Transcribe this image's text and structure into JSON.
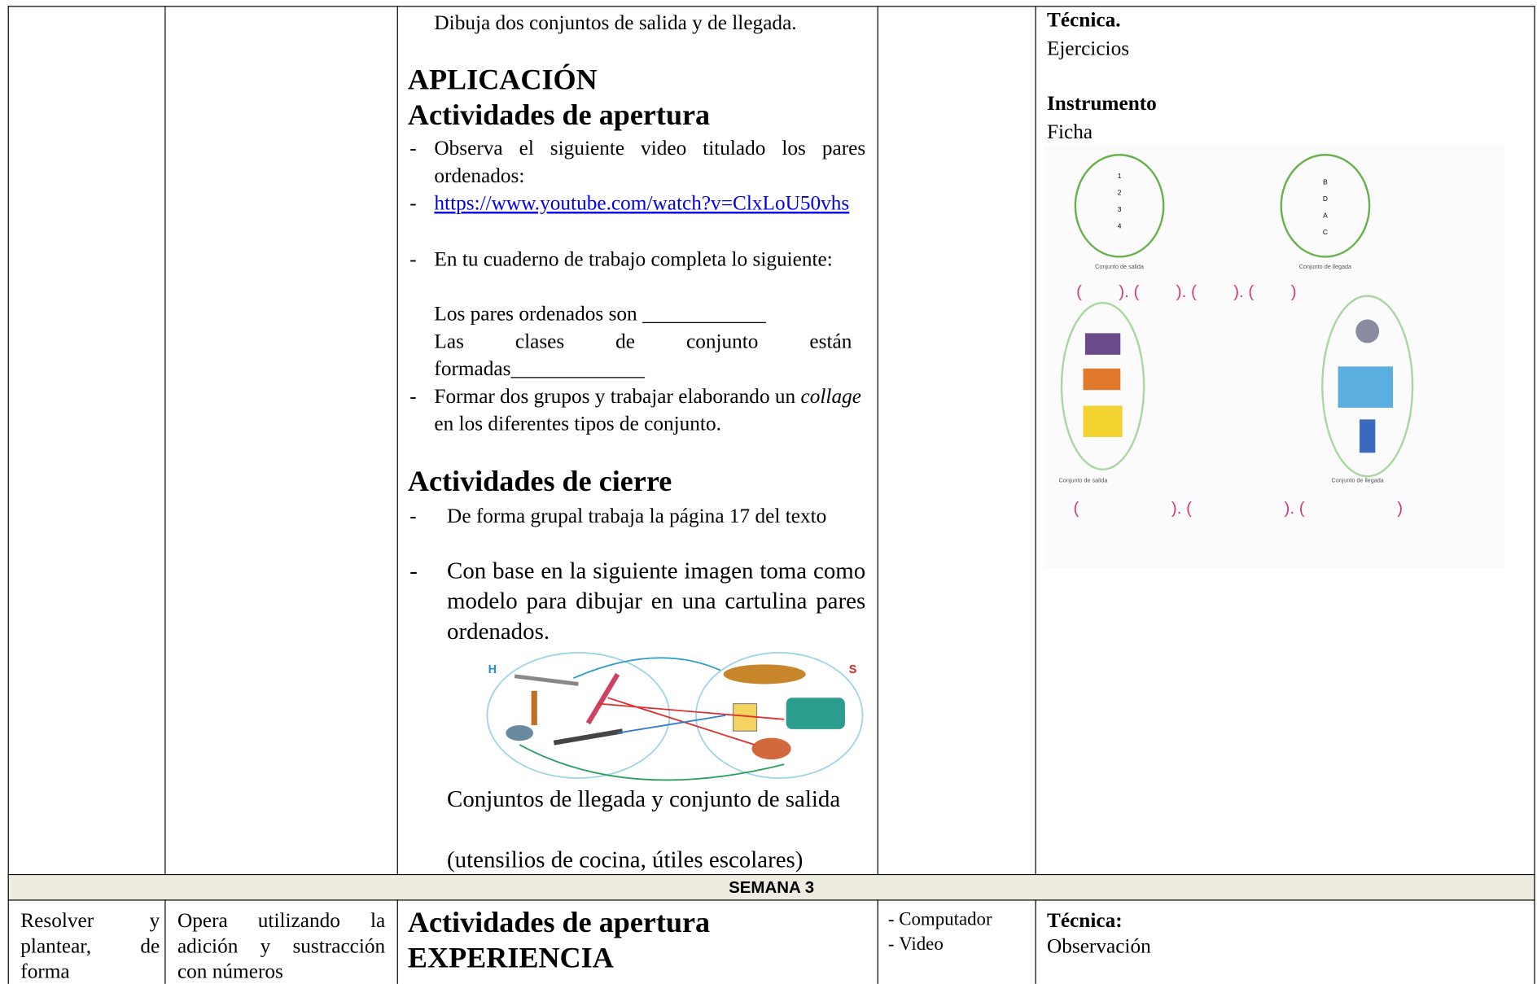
{
  "row1": {
    "col3": {
      "intro": "Dibuja dos conjuntos de salida y de llegada.",
      "heading": "APLICACIÓN",
      "subheading_opening": "Actividades de apertura",
      "bullet1": "Observa el siguiente video titulado los pares ordenados:",
      "link": "https://www.youtube.com/watch?v=ClxLoU50vhs",
      "bullet3": "En tu cuaderno de trabajo completa lo siguiente:",
      "line_pairs": "Los pares ordenados son ____________",
      "line_classes": "Las clases de conjunto están formadas_____________",
      "bullet4_start": "Formar dos grupos y trabajar elaborando un ",
      "bullet4_italic": "collage",
      "bullet4_end": " en los diferentes tipos de conjunto.",
      "subheading_closing": "Actividades de cierre",
      "closing1": "De forma grupal trabaja la página 17 del texto",
      "closing2": "Con base en la siguiente imagen toma como modelo para dibujar en una cartulina pares ordenados.",
      "figure": {
        "left_set": "H",
        "right_set": "S"
      },
      "caption": "Conjuntos de llegada y conjunto de salida",
      "caption_note": "(utensilios de cocina, útiles escolares)"
    },
    "col6": {
      "technique_label": "Técnica.",
      "technique": "Ejercicios",
      "instrument_label": "Instrumento",
      "instrument": "Ficha",
      "worksheet": {
        "set_a": [
          "1",
          "2",
          "3",
          "4"
        ],
        "set_b": [
          "B",
          "D",
          "A",
          "C"
        ],
        "label_out": "Conjunto de salida",
        "label_in": "Conjunto de llegada",
        "pairs_row1": "(        ). (        ). (        ). (        )",
        "label_out2": "Conjunto de salida",
        "label_in2": "Conjunto de llegada",
        "pairs_row2": "(                    ). (                    ). (                    )"
      }
    }
  },
  "week": "SEMANA 3",
  "row2": {
    "col1": "Resolver y plantear, de forma",
    "col2": "Opera utilizando la adición y sustracción con números",
    "col3_heading": "Actividades de apertura",
    "col3_subheading": "EXPERIENCIA",
    "resources": [
      "Computador",
      "Video"
    ],
    "technique_label": "Técnica:",
    "technique": "Observación"
  }
}
